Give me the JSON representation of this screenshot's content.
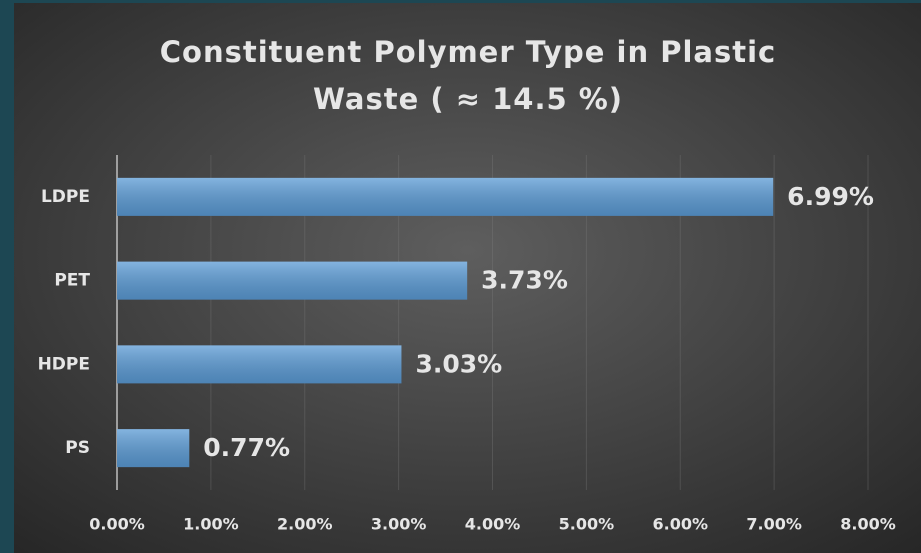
{
  "chart_data": {
    "type": "hbar",
    "title": [
      "Constituent Polymer Type in Plastic",
      "Waste ( ≈ 14.5 %)"
    ],
    "categories": [
      "LDPE",
      "PET",
      "HDPE",
      "PS"
    ],
    "values": [
      6.99,
      3.73,
      3.03,
      0.77
    ],
    "value_labels": [
      "6.99%",
      "3.73%",
      "3.03%",
      "0.77%"
    ],
    "color": "#5b9bd5",
    "xlim": [
      0,
      8
    ],
    "xticks": [
      {
        "value": 0,
        "label": "0.00%"
      },
      {
        "value": 1,
        "label": "1.00%"
      },
      {
        "value": 2,
        "label": "2.00%"
      },
      {
        "value": 3,
        "label": "3.00%"
      },
      {
        "value": 4,
        "label": "4.00%"
      },
      {
        "value": 5,
        "label": "5.00%"
      },
      {
        "value": 6,
        "label": "6.00%"
      },
      {
        "value": 7,
        "label": "7.00%"
      },
      {
        "value": 8,
        "label": "8.00%"
      }
    ],
    "grid": true
  }
}
